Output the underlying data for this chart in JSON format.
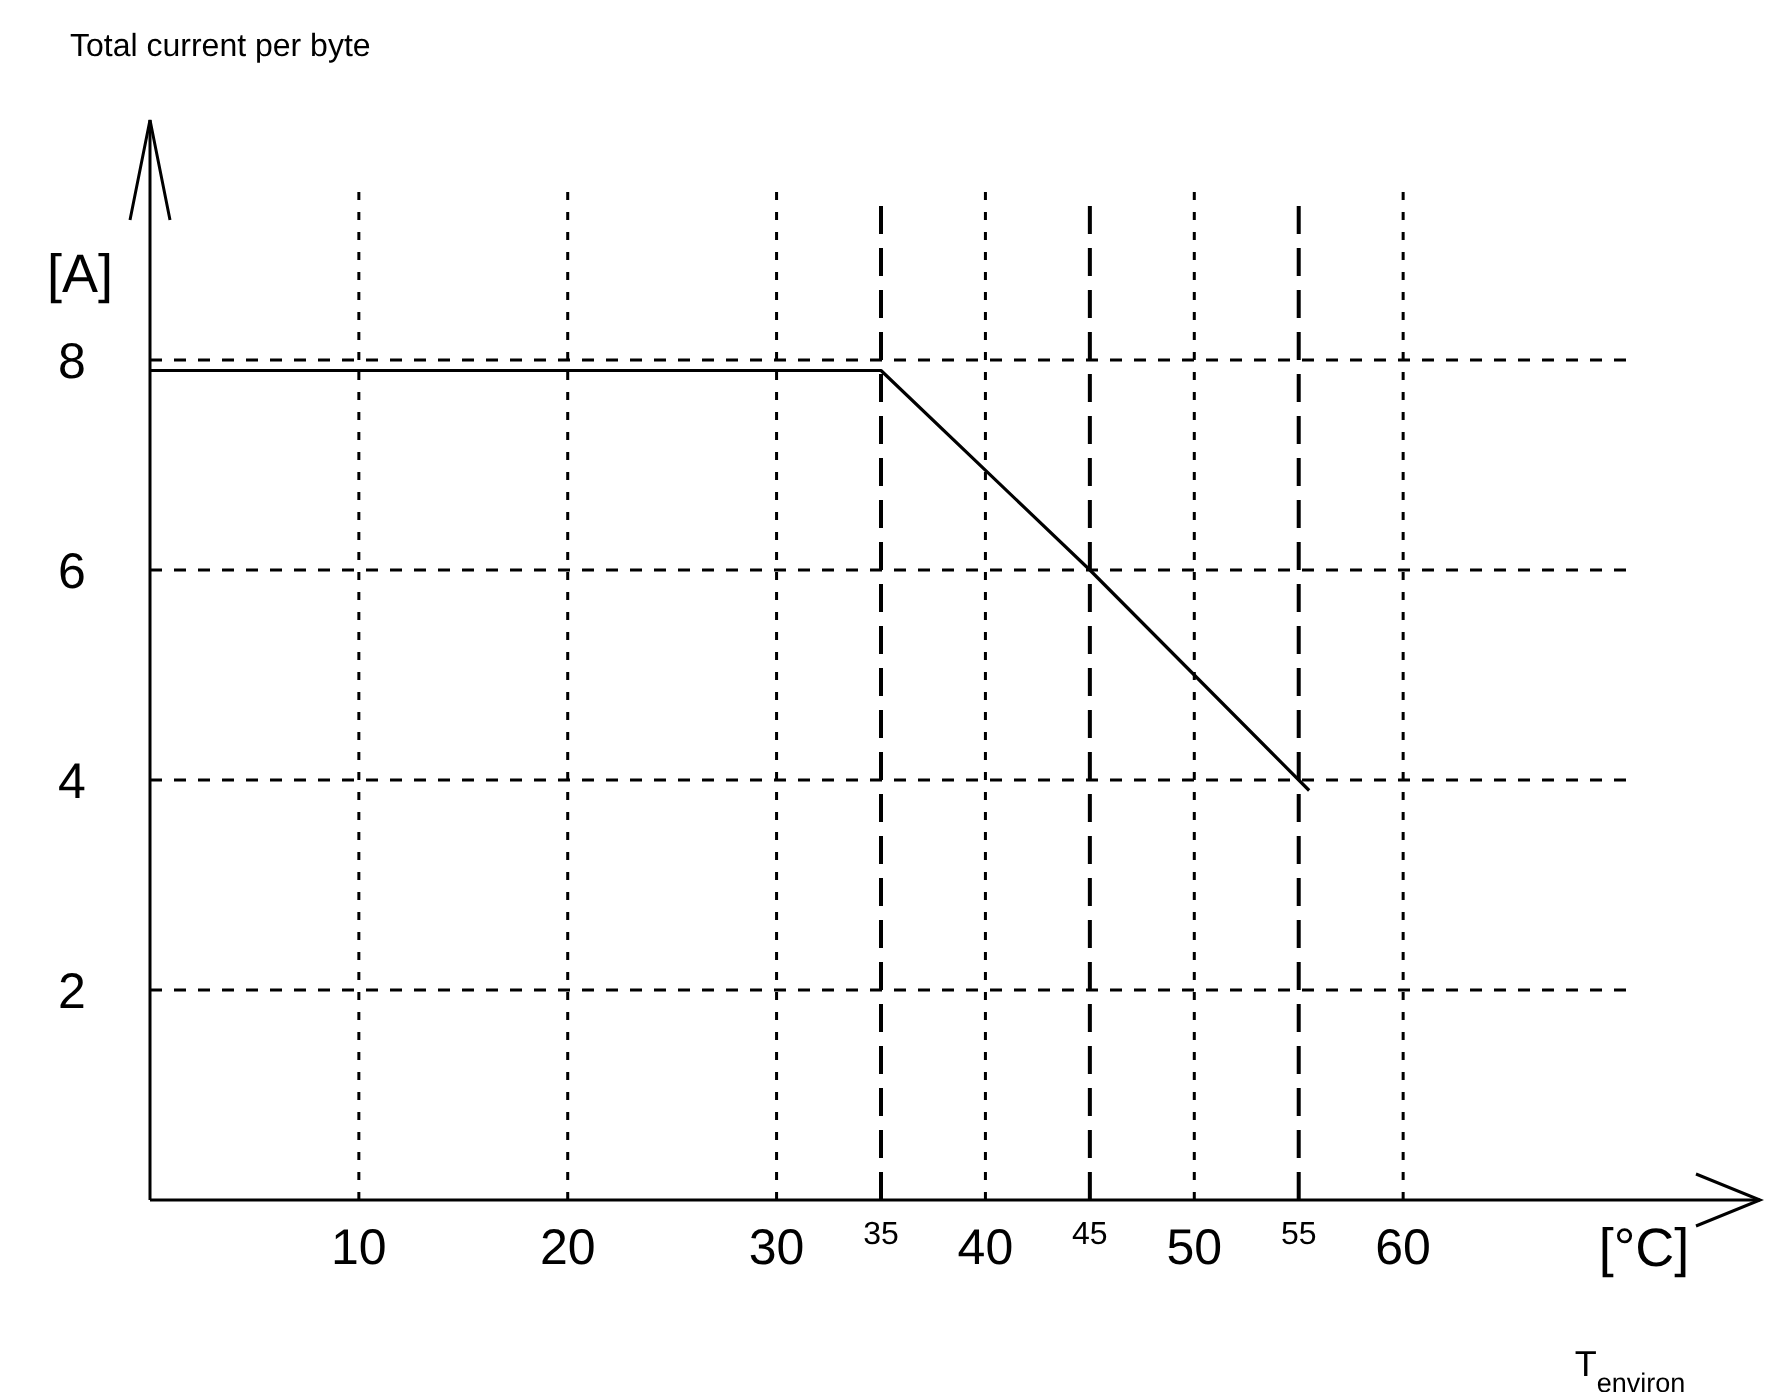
{
  "chart_data": {
    "type": "line",
    "title": "Total current per byte",
    "xlabel": "[°C]",
    "ylabel": "[A]",
    "annotations": [
      "T$_{environ}$"
    ],
    "x": [
      0,
      35,
      45,
      55.5
    ],
    "series": [
      {
        "color": "#000000",
        "values": [
          7.9,
          7.9,
          6,
          3.9
        ]
      }
    ],
    "xlim": [
      0,
      70
    ],
    "xticks": [
      10,
      20,
      30,
      40,
      50,
      60
    ],
    "ylim": [
      0,
      9.6
    ],
    "yticks": [
      2,
      4,
      6,
      8
    ],
    "ref_lines": [
      {
        "axis": "x",
        "value": 35,
        "label": "35",
        "line_style": "dashed"
      },
      {
        "axis": "x",
        "value": 45,
        "label": "45",
        "line_style": "dashed"
      },
      {
        "axis": "x",
        "value": 55,
        "label": "55",
        "line_style": "dashed"
      }
    ],
    "grid": true,
    "marker": "none",
    "line_style": "solid"
  }
}
